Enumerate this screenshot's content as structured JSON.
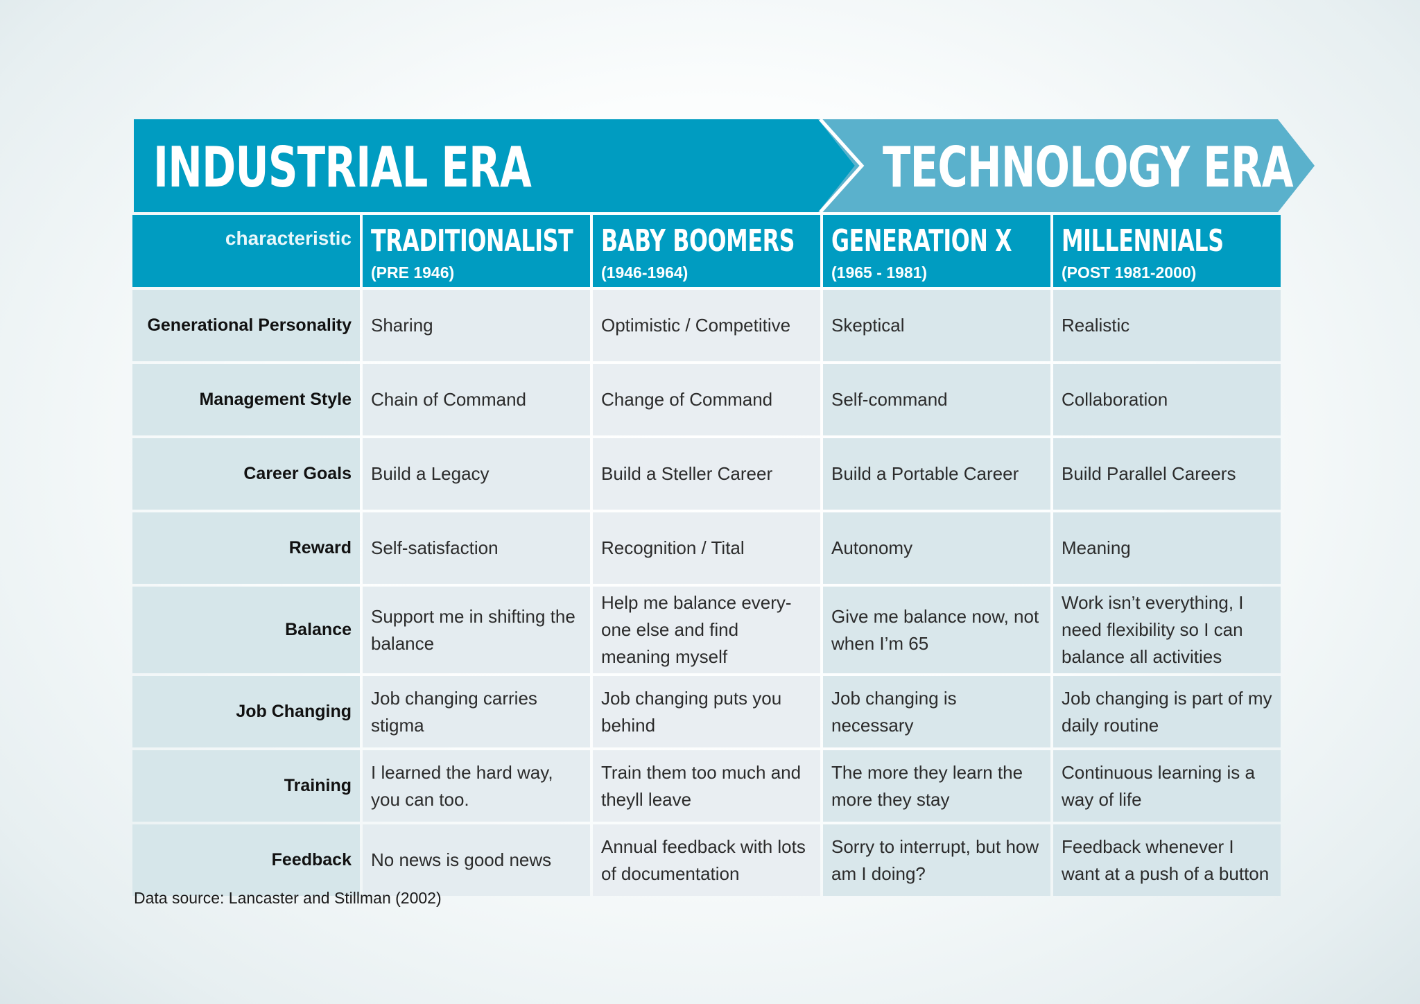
{
  "banner": {
    "industrial_title": "INDUSTRIAL ERA",
    "technology_title": "TECHNOLOGY ERA",
    "industrial_color": "#009cc1",
    "technology_color": "#5ab1cc"
  },
  "header": {
    "characteristic_label": "characteristic",
    "generations": [
      {
        "name": "TRADITIONALIST",
        "years": "(PRE 1946)"
      },
      {
        "name": "BABY BOOMERS",
        "years": "(1946-1964)"
      },
      {
        "name": "GENERATION X",
        "years": "(1965 - 1981)"
      },
      {
        "name": "MILLENNIALS",
        "years": "(POST 1981-2000)"
      }
    ]
  },
  "rows": [
    {
      "label": "Generational Personality",
      "cells": [
        "Sharing",
        "Optimistic / Competitive",
        "Skeptical",
        "Realistic"
      ]
    },
    {
      "label": "Management Style",
      "cells": [
        "Chain of Command",
        "Change of Command",
        "Self-command",
        "Collaboration"
      ]
    },
    {
      "label": "Career Goals",
      "cells": [
        "Build a Legacy",
        "Build a Steller Career",
        "Build a Portable Career",
        "Build Parallel Careers"
      ]
    },
    {
      "label": "Reward",
      "cells": [
        "Self-satisfaction",
        "Recognition / Tital",
        "Autonomy",
        "Meaning"
      ]
    },
    {
      "label": "Balance",
      "cells": [
        "Support me in shifting the balance",
        "Help me balance every-one else and find meaning myself",
        "Give me balance now, not when I’m 65",
        "Work isn’t everything, I need flexibility so I can balance all activities"
      ]
    },
    {
      "label": "Job Changing",
      "cells": [
        "Job changing carries stigma",
        "Job changing puts you behind",
        "Job changing is necessary",
        "Job changing is part of my daily routine"
      ]
    },
    {
      "label": "Training",
      "cells": [
        "I learned the hard way, you can too.",
        "Train them too much and theyll leave",
        "The more they learn the more they stay",
        "Continuous learning is a way of life"
      ]
    },
    {
      "label": "Feedback",
      "cells": [
        "No news is good news",
        "Annual feedback with lots of documentation",
        "Sorry to interrupt, but how am I doing?",
        "Feedback whenever I want at a push of a button"
      ]
    }
  ],
  "source": "Data source: Lancaster and Stillman (2002)"
}
